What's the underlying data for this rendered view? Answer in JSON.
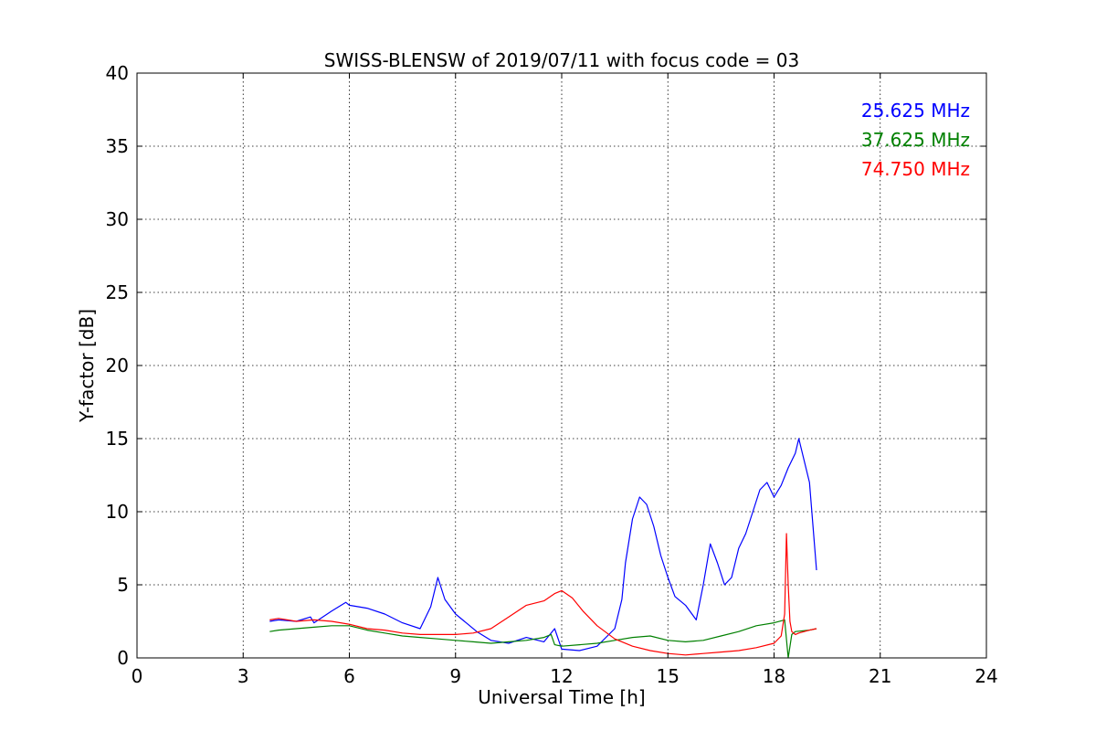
{
  "chart_data": {
    "type": "line",
    "title": "SWISS-BLENSW of 2019/07/11 with focus code = 03",
    "xlabel": "Universal Time [h]",
    "ylabel": "Y-factor [dB]",
    "xlim": [
      0,
      24
    ],
    "ylim": [
      0,
      40
    ],
    "xticks": [
      0,
      3,
      6,
      9,
      12,
      15,
      18,
      21,
      24
    ],
    "yticks": [
      0,
      5,
      10,
      15,
      20,
      25,
      30,
      35,
      40
    ],
    "grid": true,
    "legend_position": "top-right",
    "series": [
      {
        "name": "25.625 MHz",
        "color": "#0000ff",
        "x": [
          3.75,
          4.0,
          4.5,
          4.9,
          5.0,
          5.5,
          5.9,
          6.0,
          6.5,
          7.0,
          7.5,
          8.0,
          8.3,
          8.5,
          8.7,
          9.0,
          9.3,
          9.6,
          10.0,
          10.5,
          11.0,
          11.5,
          11.8,
          12.0,
          12.5,
          13.0,
          13.5,
          13.7,
          13.8,
          14.0,
          14.2,
          14.4,
          14.6,
          14.8,
          15.0,
          15.2,
          15.5,
          15.8,
          16.0,
          16.2,
          16.4,
          16.6,
          16.8,
          17.0,
          17.2,
          17.4,
          17.6,
          17.8,
          18.0,
          18.2,
          18.4,
          18.6,
          18.7,
          18.8,
          19.0,
          19.2
        ],
        "y": [
          2.5,
          2.6,
          2.5,
          2.8,
          2.4,
          3.2,
          3.8,
          3.6,
          3.4,
          3.0,
          2.4,
          2.0,
          3.5,
          5.5,
          4.0,
          3.0,
          2.4,
          1.8,
          1.2,
          1.0,
          1.4,
          1.1,
          2.0,
          0.6,
          0.5,
          0.8,
          2.0,
          4.0,
          6.5,
          9.5,
          11.0,
          10.5,
          9.0,
          7.0,
          5.5,
          4.2,
          3.6,
          2.6,
          5.0,
          7.8,
          6.5,
          5.0,
          5.5,
          7.5,
          8.5,
          10.0,
          11.5,
          12.0,
          11.0,
          11.8,
          13.0,
          14.0,
          15.0,
          14.0,
          12.0,
          6.0
        ]
      },
      {
        "name": "37.625 MHz",
        "color": "#008000",
        "x": [
          3.75,
          4.0,
          4.5,
          5.0,
          5.5,
          6.0,
          6.5,
          7.0,
          7.5,
          8.0,
          8.5,
          9.0,
          9.5,
          10.0,
          10.5,
          11.0,
          11.5,
          11.7,
          11.8,
          12.0,
          12.5,
          13.0,
          13.5,
          14.0,
          14.5,
          15.0,
          15.5,
          16.0,
          16.5,
          17.0,
          17.5,
          18.0,
          18.3,
          18.4,
          18.5,
          18.6,
          19.0,
          19.2
        ],
        "y": [
          1.8,
          1.9,
          2.0,
          2.1,
          2.2,
          2.2,
          1.9,
          1.7,
          1.5,
          1.4,
          1.3,
          1.2,
          1.1,
          1.0,
          1.1,
          1.2,
          1.4,
          1.6,
          0.9,
          0.8,
          0.9,
          1.0,
          1.2,
          1.4,
          1.5,
          1.2,
          1.1,
          1.2,
          1.5,
          1.8,
          2.2,
          2.4,
          2.6,
          0.0,
          1.6,
          1.8,
          1.9,
          2.0
        ]
      },
      {
        "name": "74.750 MHz",
        "color": "#ff0000",
        "x": [
          3.75,
          4.0,
          4.5,
          5.0,
          5.5,
          6.0,
          6.5,
          7.0,
          7.5,
          8.0,
          8.5,
          9.0,
          9.5,
          10.0,
          10.5,
          11.0,
          11.5,
          11.8,
          12.0,
          12.3,
          12.6,
          13.0,
          13.5,
          14.0,
          14.5,
          15.0,
          15.5,
          16.0,
          16.5,
          17.0,
          17.5,
          18.0,
          18.2,
          18.3,
          18.35,
          18.4,
          18.45,
          18.5,
          18.6,
          18.7,
          19.0,
          19.2
        ],
        "y": [
          2.6,
          2.7,
          2.5,
          2.6,
          2.5,
          2.3,
          2.0,
          1.9,
          1.7,
          1.6,
          1.6,
          1.6,
          1.7,
          2.0,
          2.8,
          3.6,
          3.9,
          4.4,
          4.6,
          4.1,
          3.2,
          2.2,
          1.3,
          0.8,
          0.5,
          0.3,
          0.2,
          0.3,
          0.4,
          0.5,
          0.7,
          1.0,
          1.5,
          3.0,
          8.5,
          5.0,
          2.5,
          1.8,
          1.6,
          1.7,
          1.9,
          2.0
        ]
      }
    ]
  }
}
